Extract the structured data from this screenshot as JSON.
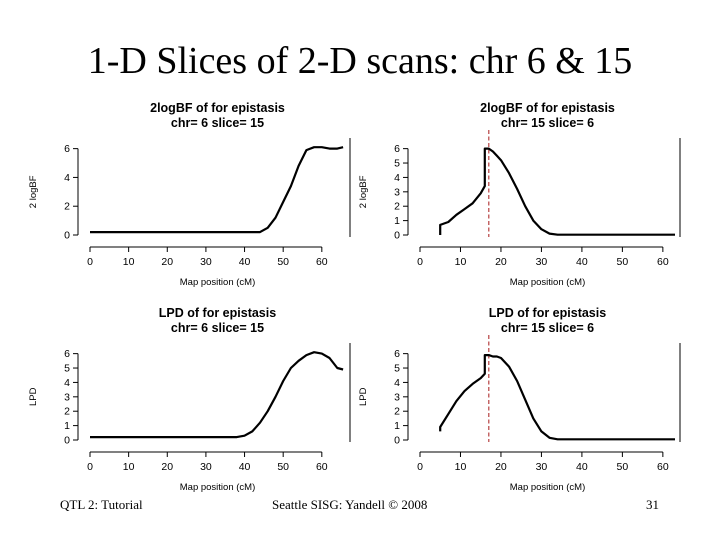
{
  "slide": {
    "title": "1-D Slices of 2-D scans: chr 6 & 15",
    "footer_left": "QTL 2: Tutorial",
    "footer_center": "Seattle SISG: Yandell © 2008",
    "footer_right": "31"
  },
  "chart_data": [
    {
      "type": "line",
      "title": "2logBF of for epistasis",
      "subtitle": "chr= 6 slice= 15",
      "xlabel": "Map position (cM)",
      "ylabel": "2 logBF",
      "xlim": [
        0,
        66
      ],
      "ylim": [
        0,
        6.6
      ],
      "xticks": [
        0,
        10,
        20,
        30,
        40,
        50,
        60
      ],
      "yticks": [
        0,
        2,
        4,
        6
      ],
      "series": [
        {
          "x": [
            0,
            40,
            44,
            46,
            48,
            50,
            52,
            54,
            56,
            58,
            60,
            62,
            64,
            65.5
          ],
          "y": [
            0.2,
            0.2,
            0.2,
            0.5,
            1.2,
            2.3,
            3.4,
            4.8,
            5.9,
            6.1,
            6.1,
            6.0,
            6.0,
            6.1
          ]
        }
      ]
    },
    {
      "type": "line",
      "title": "2logBF of for epistasis",
      "subtitle": "chr= 15 slice= 6",
      "xlabel": "Map position (cM)",
      "ylabel": "2 logBF",
      "xlim": [
        0,
        63
      ],
      "ylim": [
        0,
        6.6
      ],
      "xticks": [
        0,
        10,
        20,
        30,
        40,
        50,
        60
      ],
      "yticks": [
        0,
        1,
        2,
        3,
        4,
        5,
        6
      ],
      "peak_x": 17,
      "series": [
        {
          "x": [
            5,
            5,
            7,
            9,
            11,
            13,
            15,
            16,
            16,
            17,
            18,
            19,
            20,
            22,
            24,
            26,
            28,
            30,
            32,
            34,
            40,
            63
          ],
          "y": [
            0,
            0.7,
            0.9,
            1.4,
            1.8,
            2.2,
            2.9,
            3.4,
            6.0,
            6.0,
            5.8,
            5.5,
            5.2,
            4.3,
            3.2,
            2.0,
            1.0,
            0.4,
            0.1,
            0.02,
            0.02,
            0.02
          ]
        }
      ]
    },
    {
      "type": "line",
      "title": "LPD of for epistasis",
      "subtitle": "chr= 6 slice= 15",
      "xlabel": "Map position (cM)",
      "ylabel": "LPD",
      "xlim": [
        0,
        66
      ],
      "ylim": [
        0,
        6.6
      ],
      "xticks": [
        0,
        10,
        20,
        30,
        40,
        50,
        60
      ],
      "yticks": [
        0,
        1,
        2,
        3,
        4,
        5,
        6
      ],
      "series": [
        {
          "x": [
            0,
            38,
            40,
            42,
            44,
            46,
            48,
            50,
            52,
            54,
            56,
            58,
            60,
            62,
            64,
            65.5
          ],
          "y": [
            0.2,
            0.2,
            0.3,
            0.6,
            1.2,
            2.0,
            3.0,
            4.1,
            5.0,
            5.5,
            5.9,
            6.1,
            6.0,
            5.7,
            5.0,
            4.9
          ]
        }
      ]
    },
    {
      "type": "line",
      "title": "LPD of for epistasis",
      "subtitle": "chr= 15 slice= 6",
      "xlabel": "Map position (cM)",
      "ylabel": "LPD",
      "xlim": [
        0,
        63
      ],
      "ylim": [
        0,
        6.6
      ],
      "xticks": [
        0,
        10,
        20,
        30,
        40,
        50,
        60
      ],
      "yticks": [
        0,
        1,
        2,
        3,
        4,
        5,
        6
      ],
      "peak_x": 17,
      "series": [
        {
          "x": [
            5,
            5,
            7,
            9,
            11,
            13,
            15,
            16,
            16,
            17,
            18,
            19,
            20,
            22,
            24,
            26,
            28,
            30,
            32,
            34,
            40,
            63
          ],
          "y": [
            0.6,
            0.9,
            1.8,
            2.7,
            3.4,
            3.9,
            4.3,
            4.6,
            5.9,
            5.9,
            5.8,
            5.8,
            5.7,
            5.1,
            4.1,
            2.8,
            1.5,
            0.6,
            0.15,
            0.05,
            0.05,
            0.05
          ]
        }
      ]
    }
  ]
}
